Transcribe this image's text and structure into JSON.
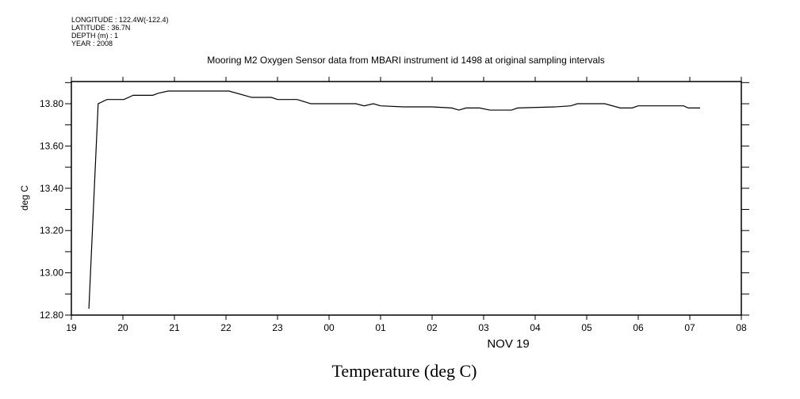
{
  "header": {
    "longitude": "LONGITUDE : 122.4W(-122.4)",
    "latitude": "LATITUDE : 36.7N",
    "depth": "DEPTH (m) : 1",
    "year": "YEAR : 2008"
  },
  "chart_data": {
    "type": "line",
    "title": "Mooring M2 Oxygen Sensor data from MBARI instrument id 1498 at original sampling intervals",
    "xlabel": "NOV 19",
    "ylabel": "deg C",
    "caption": "Temperature (deg C)",
    "x_unit": "hours since 19:00 Nov 18",
    "xlim": [
      0,
      13
    ],
    "ylim": [
      12.8,
      13.905
    ],
    "x_tick_labels": [
      "19",
      "20",
      "21",
      "22",
      "23",
      "00",
      "01",
      "02",
      "03",
      "04",
      "05",
      "06",
      "07",
      "08"
    ],
    "y_ticks": [
      12.8,
      13.0,
      13.2,
      13.4,
      13.6,
      13.8
    ],
    "y_tick_labels": [
      "12.80",
      "13.00",
      "13.20",
      "13.40",
      "13.60",
      "13.80"
    ],
    "grid": false,
    "series": [
      {
        "name": "Temperature",
        "x": [
          0.34,
          0.52,
          0.69,
          1.02,
          1.2,
          1.58,
          1.69,
          1.88,
          3.06,
          3.5,
          3.88,
          4.0,
          4.38,
          4.65,
          5.52,
          5.68,
          5.86,
          6.0,
          6.46,
          7.0,
          7.38,
          7.52,
          7.66,
          7.92,
          8.12,
          8.54,
          8.66,
          9.38,
          9.69,
          9.82,
          10.35,
          10.65,
          10.88,
          11.0,
          11.88,
          11.97,
          12.2
        ],
        "y": [
          12.83,
          13.8,
          13.82,
          13.82,
          13.84,
          13.84,
          13.85,
          13.86,
          13.86,
          13.83,
          13.83,
          13.82,
          13.82,
          13.8,
          13.8,
          13.79,
          13.8,
          13.79,
          13.785,
          13.785,
          13.78,
          13.77,
          13.78,
          13.78,
          13.77,
          13.77,
          13.78,
          13.785,
          13.79,
          13.8,
          13.8,
          13.78,
          13.78,
          13.79,
          13.79,
          13.78,
          13.78
        ]
      }
    ]
  }
}
